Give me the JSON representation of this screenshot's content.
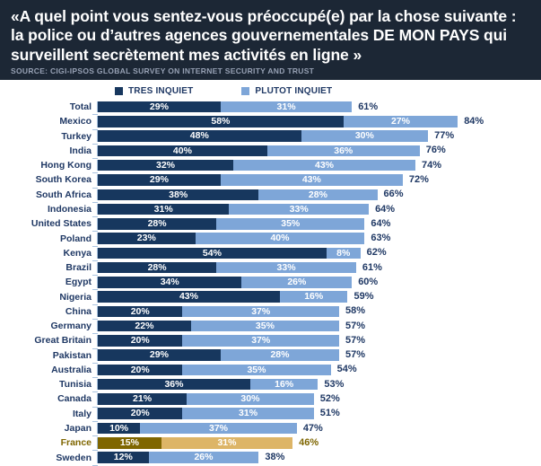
{
  "header": {
    "title": "«A quel point vous sentez-vous préoccupé(e) par la chose suivante : la police ou d’autres agences gouvernementales DE MON PAYS qui surveillent secrètement mes activités en ligne »",
    "source": "SOURCE: CIGI-IPSOS GLOBAL SURVEY ON INTERNET SECURITY AND TRUST"
  },
  "legend": [
    {
      "label": "TRES INQUIET",
      "color": "#17375E"
    },
    {
      "label": "PLUTOT INQUIET",
      "color": "#7EA6D8"
    }
  ],
  "colors": {
    "header_bg": "#1C2735",
    "series1": "#17375E",
    "series2": "#7EA6D8",
    "label": "#1F3864",
    "axis": "#A9C3DF",
    "highlight_dark": "#7F6600",
    "highlight_light": "#DDB567"
  },
  "chart_data": {
    "type": "bar",
    "orientation": "horizontal",
    "stacked": true,
    "title": "«A quel point vous sentez-vous préoccupé(e) par la chose suivante : la police ou d’autres agences gouvernementales DE MON PAYS qui surveillent secrètement mes activités en ligne »",
    "xlabel": "",
    "ylabel": "",
    "xlim": [
      0,
      100
    ],
    "grid": false,
    "legend_position": "top",
    "categories": [
      "Total",
      "Mexico",
      "Turkey",
      "India",
      "Hong Kong",
      "South Korea",
      "South Africa",
      "Indonesia",
      "United States",
      "Poland",
      "Kenya",
      "Brazil",
      "Egypt",
      "Nigeria",
      "China",
      "Germany",
      "Great Britain",
      "Pakistan",
      "Australia",
      "Tunisia",
      "Canada",
      "Italy",
      "Japan",
      "France",
      "Sweden"
    ],
    "series": [
      {
        "name": "TRES INQUIET",
        "values": [
          29,
          58,
          48,
          40,
          32,
          29,
          38,
          31,
          28,
          23,
          54,
          28,
          34,
          43,
          20,
          22,
          20,
          29,
          20,
          36,
          21,
          20,
          10,
          15,
          12
        ]
      },
      {
        "name": "PLUTOT INQUIET",
        "values": [
          31,
          27,
          30,
          36,
          43,
          43,
          28,
          33,
          35,
          40,
          8,
          33,
          26,
          16,
          37,
          35,
          37,
          28,
          35,
          16,
          30,
          31,
          37,
          31,
          26
        ]
      }
    ],
    "totals": [
      61,
      84,
      77,
      76,
      74,
      72,
      66,
      64,
      64,
      63,
      62,
      61,
      60,
      59,
      58,
      57,
      57,
      57,
      54,
      53,
      52,
      51,
      47,
      46,
      38
    ],
    "highlight": {
      "category": "France",
      "segment_colors": [
        "#7F6600",
        "#DDB567"
      ],
      "label_color": "#7F6600"
    }
  }
}
